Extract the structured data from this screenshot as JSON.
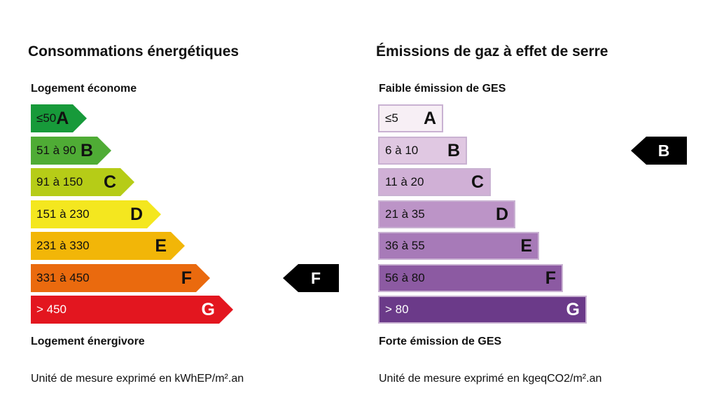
{
  "energy": {
    "title": "Consommations énergétiques",
    "top_label": "Logement économe",
    "bottom_label": "Logement énergivore",
    "unit_note": "Unité de mesure exprimé en kWhEP/m².an",
    "classes": [
      {
        "range": "≤50",
        "letter": "A",
        "color": "#179a3a"
      },
      {
        "range": "51 à 90",
        "letter": "B",
        "color": "#4fac35"
      },
      {
        "range": "91 à 150",
        "letter": "C",
        "color": "#b6cc17"
      },
      {
        "range": "151 à 230",
        "letter": "D",
        "color": "#f4e71f"
      },
      {
        "range": "231 à 330",
        "letter": "E",
        "color": "#f2b608"
      },
      {
        "range": "331 à 450",
        "letter": "F",
        "color": "#ea6a0e"
      },
      {
        "range": "> 450",
        "letter": "G",
        "color": "#e3161f"
      }
    ],
    "indicator": "F"
  },
  "ges": {
    "title": "Émissions de gaz à effet de serre",
    "top_label": "Faible émission de GES",
    "bottom_label": "Forte émission de GES",
    "unit_note": "Unité de mesure exprimé en kgeqCO2/m².an",
    "classes": [
      {
        "range": "≤5",
        "letter": "A",
        "color": "#f7eff5"
      },
      {
        "range": "6 à 10",
        "letter": "B",
        "color": "#e0c8e2"
      },
      {
        "range": "11 à 20",
        "letter": "C",
        "color": "#d0b0d6"
      },
      {
        "range": "21 à 35",
        "letter": "D",
        "color": "#bc94c7"
      },
      {
        "range": "36 à 55",
        "letter": "E",
        "color": "#a77ab8"
      },
      {
        "range": "56 à 80",
        "letter": "F",
        "color": "#8c5aa2"
      },
      {
        "range": "> 80",
        "letter": "G",
        "color": "#6b3a89"
      }
    ],
    "indicator": "B"
  }
}
